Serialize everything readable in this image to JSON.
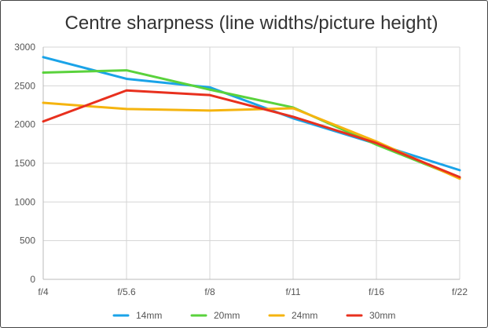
{
  "chart_data": {
    "type": "line",
    "title": "Centre sharpness (line widths/picture height)",
    "xlabel": "",
    "ylabel": "",
    "categories": [
      "f/4",
      "f/5.6",
      "f/8",
      "f/11",
      "f/16",
      "f/22"
    ],
    "ylim": [
      0,
      3000
    ],
    "yticks": [
      0,
      500,
      1000,
      1500,
      2000,
      2500,
      3000
    ],
    "grid": true,
    "legend_position": "bottom",
    "series": [
      {
        "name": "14mm",
        "color": "#1aa3e8",
        "values": [
          2870,
          2590,
          2480,
          2080,
          1750,
          1410
        ]
      },
      {
        "name": "20mm",
        "color": "#5ad23c",
        "values": [
          2670,
          2700,
          2450,
          2220,
          1740,
          1310
        ]
      },
      {
        "name": "24mm",
        "color": "#f5b40f",
        "values": [
          2280,
          2200,
          2180,
          2210,
          1780,
          1300
        ]
      },
      {
        "name": "30mm",
        "color": "#e8301e",
        "values": [
          2040,
          2440,
          2380,
          2100,
          1760,
          1320
        ]
      }
    ]
  }
}
